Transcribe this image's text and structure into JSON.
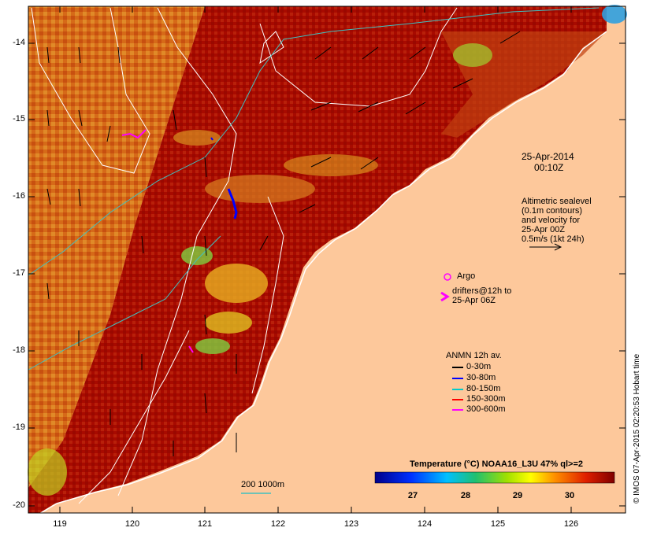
{
  "timestamp": {
    "date": "25-Apr-2014",
    "time": "00:10Z"
  },
  "altimetry_note": [
    "Altimetric sealevel",
    "(0.1m contours)",
    "and velocity for",
    "25-Apr 00Z",
    "0.5m/s (1kt 24h)"
  ],
  "argo_label": "Argo",
  "drifters_label": [
    "drifters@12h to",
    "25-Apr 06Z"
  ],
  "anmn": {
    "title": "ANMN 12h av.",
    "items": [
      {
        "label": "0-30m",
        "color": "#000000"
      },
      {
        "label": "30-80m",
        "color": "#0000ff"
      },
      {
        "label": "80-150m",
        "color": "#00cccc"
      },
      {
        "label": "150-300m",
        "color": "#ff0000"
      },
      {
        "label": "300-600m",
        "color": "#ff00ff"
      }
    ]
  },
  "isobath_label": "200  1000m",
  "colorbar": {
    "title": "Temperature (°C) NOAA16_L3U 47% ql>=2",
    "ticks": [
      "27",
      "28",
      "29",
      "30"
    ]
  },
  "y_ticks": [
    "-14",
    "-15",
    "-16",
    "-17",
    "-18",
    "-19",
    "-20"
  ],
  "x_ticks": [
    "119",
    "120",
    "121",
    "122",
    "123",
    "124",
    "125",
    "126"
  ],
  "credit": "© IMOS 07-Apr-2015 02:20:53 Hobart time",
  "colors": {
    "land": "#fdc89b",
    "sst_warm": "#a80a00",
    "sst_mid": "#d45a10",
    "sst_cool": "#e8a020",
    "contour": "#ffffff",
    "isobath": "#40c0c0"
  }
}
